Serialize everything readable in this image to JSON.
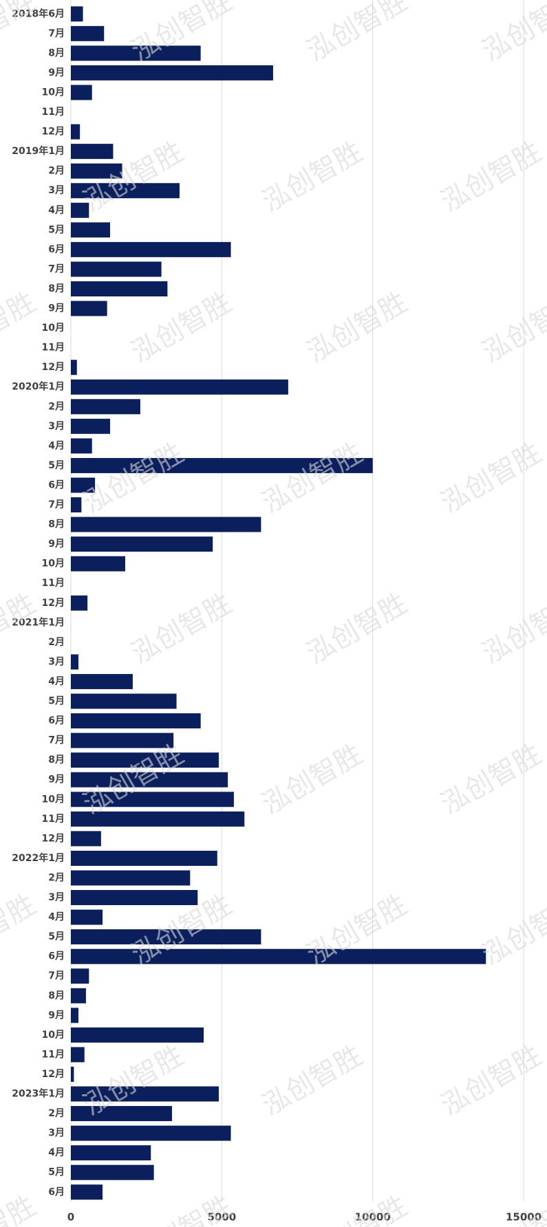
{
  "chart_data": {
    "type": "bar",
    "orientation": "horizontal",
    "watermark": "泓创智胜",
    "color": "#0b1f5c",
    "grid": true,
    "categories": [
      "2018年6月",
      "7月",
      "8月",
      "9月",
      "10月",
      "11月",
      "12月",
      "2019年1月",
      "2月",
      "3月",
      "4月",
      "5月",
      "6月",
      "7月",
      "8月",
      "9月",
      "10月",
      "11月",
      "12月",
      "2020年1月",
      "2月",
      "3月",
      "4月",
      "5月",
      "6月",
      "7月",
      "8月",
      "9月",
      "10月",
      "11月",
      "12月",
      "2021年1月",
      "2月",
      "3月",
      "4月",
      "5月",
      "6月",
      "7月",
      "8月",
      "9月",
      "10月",
      "11月",
      "12月",
      "2022年1月",
      "2月",
      "3月",
      "4月",
      "5月",
      "6月",
      "7月",
      "8月",
      "9月",
      "10月",
      "11月",
      "12月",
      "2023年1月",
      "2月",
      "3月",
      "4月",
      "5月",
      "6月"
    ],
    "values": [
      400,
      1100,
      4300,
      6700,
      700,
      0,
      300,
      1400,
      1700,
      3600,
      600,
      1300,
      5300,
      3000,
      3200,
      1200,
      0,
      0,
      200,
      7200,
      2300,
      1300,
      700,
      10000,
      800,
      350,
      6300,
      4700,
      1800,
      0,
      550,
      0,
      0,
      250,
      2050,
      3500,
      4300,
      3400,
      4900,
      5200,
      5400,
      5750,
      1000,
      4850,
      3950,
      4200,
      1050,
      6300,
      13750,
      600,
      500,
      250,
      4400,
      450,
      100,
      4900,
      3350,
      5300,
      2650,
      2750,
      1050
    ],
    "xlim": [
      0,
      15750
    ],
    "xticks": [
      0,
      5000,
      10000,
      15000
    ]
  }
}
